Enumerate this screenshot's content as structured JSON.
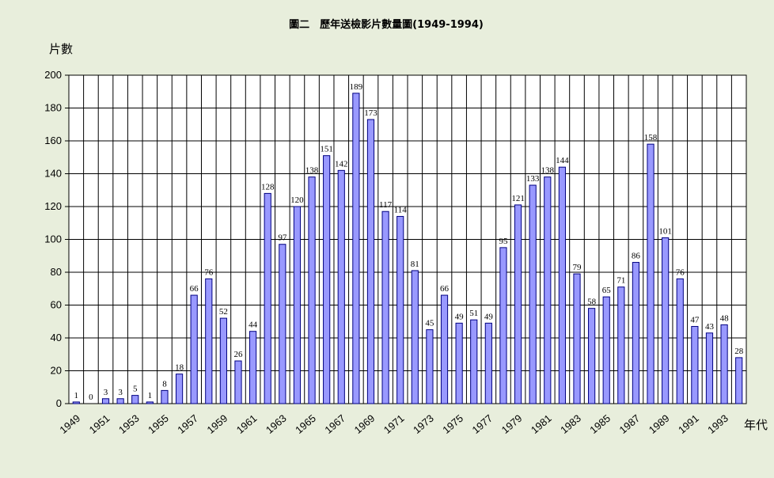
{
  "chart_data": {
    "type": "bar",
    "title": "圖二　歷年送檢影片數量圖(1949-1994)",
    "ylabel": "片數",
    "xlabel": "年代",
    "ylim": [
      0,
      200
    ],
    "yticks": [
      0,
      20,
      40,
      60,
      80,
      100,
      120,
      140,
      160,
      180,
      200
    ],
    "grid": true,
    "bar_color": "#9999ff",
    "bar_edge": "#000080",
    "categories": [
      1949,
      1950,
      1951,
      1952,
      1953,
      1954,
      1955,
      1956,
      1957,
      1958,
      1959,
      1960,
      1961,
      1962,
      1963,
      1964,
      1965,
      1966,
      1967,
      1968,
      1969,
      1970,
      1971,
      1972,
      1973,
      1974,
      1975,
      1976,
      1977,
      1978,
      1979,
      1980,
      1981,
      1982,
      1983,
      1984,
      1985,
      1986,
      1987,
      1988,
      1989,
      1990,
      1991,
      1992,
      1993,
      1994
    ],
    "x_tick_labels": [
      "1949",
      "1951",
      "1953",
      "1955",
      "1957",
      "1959",
      "1961",
      "1963",
      "1965",
      "1967",
      "1969",
      "1971",
      "1973",
      "1975",
      "1977",
      "1979",
      "1981",
      "1983",
      "1985",
      "1987",
      "1989",
      "1991",
      "1993"
    ],
    "values": [
      1,
      0,
      3,
      3,
      5,
      1,
      8,
      18,
      66,
      76,
      52,
      26,
      44,
      128,
      97,
      120,
      138,
      151,
      142,
      189,
      173,
      117,
      114,
      81,
      45,
      66,
      49,
      51,
      49,
      95,
      121,
      133,
      138,
      144,
      79,
      58,
      65,
      71,
      86,
      158,
      101,
      76,
      47,
      43,
      48,
      28
    ]
  }
}
